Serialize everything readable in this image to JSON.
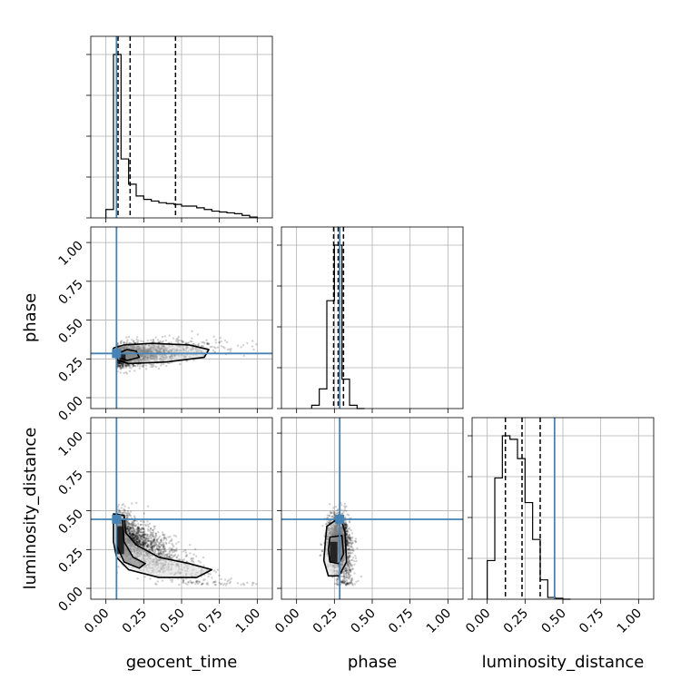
{
  "chart_data": {
    "type": "corner",
    "parameters": [
      "geocent_time",
      "phase",
      "luminosity_distance"
    ],
    "axis_labels": {
      "x": [
        "geocent_time",
        "phase",
        "luminosity_distance"
      ],
      "y": [
        "",
        "phase",
        "luminosity_distance"
      ]
    },
    "tick_values": [
      0.0,
      0.25,
      0.5,
      0.75,
      1.0
    ],
    "tick_labels": [
      "0.00",
      "0.25",
      "0.50",
      "0.75",
      "1.00"
    ],
    "ylim_2d": [
      -0.07,
      1.1
    ],
    "xlim": [
      -0.1,
      1.1
    ],
    "truths": {
      "geocent_time": 0.07,
      "phase": 0.285,
      "luminosity_distance": 0.445
    },
    "colors": {
      "truth": "#4682b4",
      "hist": "#000000",
      "grid": "#b0b0b0",
      "scatter": "#000000"
    },
    "grid": true,
    "histograms": [
      {
        "parameter": "geocent_time",
        "bin_edges": [
          0.0,
          0.05,
          0.1,
          0.15,
          0.2,
          0.25,
          0.3,
          0.35,
          0.4,
          0.45,
          0.5,
          0.55,
          0.6,
          0.65,
          0.7,
          0.75,
          0.8,
          0.85,
          0.9,
          0.95,
          1.0
        ],
        "counts": [
          0.05,
          0.97,
          0.35,
          0.2,
          0.13,
          0.11,
          0.1,
          0.09,
          0.085,
          0.08,
          0.07,
          0.07,
          0.06,
          0.05,
          0.04,
          0.035,
          0.03,
          0.025,
          0.015,
          0.005
        ],
        "quantiles": [
          0.08,
          0.16,
          0.46
        ]
      },
      {
        "parameter": "phase",
        "bin_edges": [
          0.1,
          0.15,
          0.2,
          0.25,
          0.3,
          0.35,
          0.4,
          0.45
        ],
        "counts": [
          0.02,
          0.12,
          0.66,
          1.0,
          0.18,
          0.02,
          0.0
        ],
        "quantiles": [
          0.245,
          0.275,
          0.31
        ]
      },
      {
        "parameter": "luminosity_distance",
        "bin_edges": [
          0.0,
          0.05,
          0.1,
          0.15,
          0.2,
          0.25,
          0.3,
          0.35,
          0.4,
          0.45,
          0.5,
          0.55
        ],
        "counts": [
          0.22,
          0.69,
          0.93,
          0.91,
          0.8,
          0.55,
          0.34,
          0.11,
          0.01,
          0.005,
          0.0
        ],
        "quantiles": [
          0.12,
          0.23,
          0.35
        ]
      }
    ],
    "contours_2d": [
      {
        "x_param": "geocent_time",
        "y_param": "phase",
        "inner": [
          [
            0.09,
            0.26
          ],
          [
            0.14,
            0.24
          ],
          [
            0.22,
            0.26
          ],
          [
            0.2,
            0.3
          ],
          [
            0.14,
            0.31
          ],
          [
            0.09,
            0.29
          ]
        ],
        "outer": [
          [
            0.05,
            0.28
          ],
          [
            0.08,
            0.24
          ],
          [
            0.15,
            0.22
          ],
          [
            0.4,
            0.23
          ],
          [
            0.65,
            0.26
          ],
          [
            0.68,
            0.31
          ],
          [
            0.55,
            0.34
          ],
          [
            0.3,
            0.35
          ],
          [
            0.12,
            0.34
          ],
          [
            0.05,
            0.32
          ]
        ],
        "core": [
          [
            0.09,
            0.23
          ],
          [
            0.13,
            0.23
          ],
          [
            0.13,
            0.28
          ],
          [
            0.09,
            0.28
          ]
        ]
      },
      {
        "x_param": "geocent_time",
        "y_param": "luminosity_distance",
        "inner": [
          [
            0.07,
            0.45
          ],
          [
            0.11,
            0.44
          ],
          [
            0.12,
            0.3
          ],
          [
            0.18,
            0.2
          ],
          [
            0.26,
            0.16
          ],
          [
            0.22,
            0.13
          ],
          [
            0.12,
            0.17
          ],
          [
            0.07,
            0.28
          ]
        ],
        "outer": [
          [
            0.05,
            0.48
          ],
          [
            0.12,
            0.47
          ],
          [
            0.13,
            0.36
          ],
          [
            0.2,
            0.28
          ],
          [
            0.35,
            0.2
          ],
          [
            0.55,
            0.16
          ],
          [
            0.7,
            0.12
          ],
          [
            0.6,
            0.07
          ],
          [
            0.35,
            0.07
          ],
          [
            0.15,
            0.12
          ],
          [
            0.07,
            0.2
          ],
          [
            0.05,
            0.3
          ]
        ],
        "core": [
          [
            0.07,
            0.22
          ],
          [
            0.12,
            0.22
          ],
          [
            0.12,
            0.4
          ],
          [
            0.07,
            0.4
          ]
        ]
      },
      {
        "x_param": "phase",
        "y_param": "luminosity_distance",
        "inner": [
          [
            0.22,
            0.33
          ],
          [
            0.3,
            0.34
          ],
          [
            0.31,
            0.22
          ],
          [
            0.28,
            0.16
          ],
          [
            0.22,
            0.17
          ],
          [
            0.21,
            0.25
          ]
        ],
        "outer": [
          [
            0.2,
            0.4
          ],
          [
            0.29,
            0.46
          ],
          [
            0.32,
            0.36
          ],
          [
            0.33,
            0.17
          ],
          [
            0.28,
            0.08
          ],
          [
            0.21,
            0.08
          ],
          [
            0.18,
            0.18
          ],
          [
            0.19,
            0.3
          ]
        ],
        "core": [
          [
            0.22,
            0.17
          ],
          [
            0.27,
            0.17
          ],
          [
            0.27,
            0.3
          ],
          [
            0.22,
            0.3
          ]
        ]
      }
    ]
  }
}
